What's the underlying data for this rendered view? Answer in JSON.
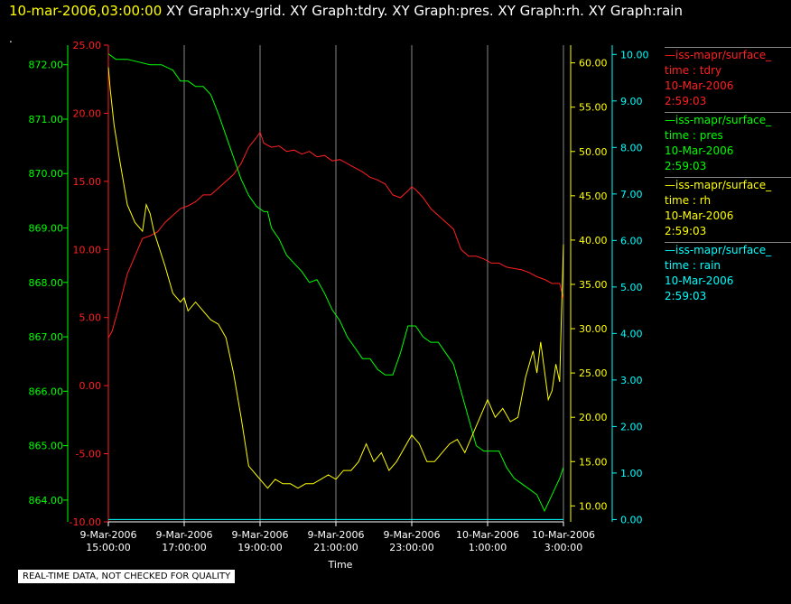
{
  "header": {
    "timestamp": "10-mar-2006,03:00:00",
    "titles": "XY Graph:xy-grid.  XY Graph:tdry.  XY Graph:pres.  XY Graph:rh.  XY Graph:rain",
    "dot": "."
  },
  "footer": "REAL-TIME DATA, NOT CHECKED FOR QUALITY",
  "legend": [
    {
      "source": "—iss-mapr/surface_",
      "line1": "time : tdry",
      "line2": "10-Mar-2006",
      "line3": "2:59:03",
      "color": "#ff2020"
    },
    {
      "source": "—iss-mapr/surface_",
      "line1": "time : pres",
      "line2": "10-Mar-2006",
      "line3": "2:59:03",
      "color": "#00ff00"
    },
    {
      "source": "—iss-mapr/surface_",
      "line1": "time : rh",
      "line2": "10-Mar-2006",
      "line3": "2:59:03",
      "color": "#ffff00"
    },
    {
      "source": "—iss-mapr/surface_",
      "line1": "time : rain",
      "line2": "10-Mar-2006",
      "line3": "2:59:03",
      "color": "#00ffff"
    }
  ],
  "chart_data": {
    "type": "line",
    "xlabel": "Time",
    "x_ticks": [
      {
        "l1": "9-Mar-2006",
        "l2": "15:00:00",
        "h": 0
      },
      {
        "l1": "9-Mar-2006",
        "l2": "17:00:00",
        "h": 2
      },
      {
        "l1": "9-Mar-2006",
        "l2": "19:00:00",
        "h": 4
      },
      {
        "l1": "9-Mar-2006",
        "l2": "21:00:00",
        "h": 6
      },
      {
        "l1": "9-Mar-2006",
        "l2": "23:00:00",
        "h": 8
      },
      {
        "l1": "10-Mar-2006",
        "l2": "1:00:00",
        "h": 10
      },
      {
        "l1": "10-Mar-2006",
        "l2": "3:00:00",
        "h": 12
      }
    ],
    "xlim_hours": [
      0,
      12
    ],
    "grid": true,
    "axes": {
      "pres": {
        "color": "#00ff00",
        "ylim": [
          863.6,
          872.36
        ],
        "ticks": [
          864,
          865,
          866,
          867,
          868,
          869,
          870,
          871,
          872
        ],
        "labels": [
          "864.00",
          "865.00",
          "866.00",
          "867.00",
          "868.00",
          "869.00",
          "870.00",
          "871.00",
          "872.00"
        ]
      },
      "tdry": {
        "color": "#ff2020",
        "ylim": [
          -10,
          25
        ],
        "ticks": [
          -10,
          -5,
          0,
          5,
          10,
          15,
          20,
          25
        ],
        "labels": [
          "-10.00",
          "-5.00",
          "0.00",
          "5.00",
          "10.00",
          "15.00",
          "20.00",
          "25.00"
        ]
      },
      "rh": {
        "color": "#ffff00",
        "ylim": [
          8.2,
          62.0
        ],
        "ticks": [
          10,
          15,
          20,
          25,
          30,
          35,
          40,
          45,
          50,
          55,
          60
        ],
        "labels": [
          "10.00",
          "15.00",
          "20.00",
          "25.00",
          "30.00",
          "35.00",
          "40.00",
          "45.00",
          "50.00",
          "55.00",
          "60.00"
        ]
      },
      "rain": {
        "color": "#00ffff",
        "ylim": [
          -0.05,
          10.2
        ],
        "ticks": [
          0,
          1,
          2,
          3,
          4,
          5,
          6,
          7,
          8,
          9,
          10
        ],
        "labels": [
          "0.00",
          "1.00",
          "2.00",
          "3.00",
          "4.00",
          "5.00",
          "6.00",
          "7.00",
          "8.00",
          "9.00",
          "10.00"
        ]
      }
    },
    "series": [
      {
        "name": "tdry",
        "axis": "tdry",
        "color": "#ff2020",
        "x": [
          0,
          0.1,
          0.3,
          0.5,
          0.7,
          0.9,
          1.1,
          1.3,
          1.5,
          1.7,
          1.9,
          2.1,
          2.3,
          2.5,
          2.7,
          2.9,
          3.1,
          3.3,
          3.5,
          3.7,
          3.9,
          4.0,
          4.1,
          4.3,
          4.5,
          4.7,
          4.9,
          5.1,
          5.3,
          5.5,
          5.7,
          5.9,
          6.1,
          6.3,
          6.5,
          6.7,
          6.9,
          7.1,
          7.3,
          7.5,
          7.7,
          7.9,
          8.0,
          8.1,
          8.3,
          8.5,
          8.7,
          8.9,
          9.1,
          9.3,
          9.5,
          9.7,
          9.9,
          10.1,
          10.3,
          10.5,
          10.7,
          10.9,
          11.1,
          11.3,
          11.5,
          11.7,
          11.9,
          12.0
        ],
        "y": [
          3.5,
          4,
          6,
          8.2,
          9.5,
          10.8,
          11,
          11.3,
          12,
          12.5,
          13,
          13.2,
          13.5,
          14,
          14,
          14.5,
          15,
          15.5,
          16.3,
          17.5,
          18.2,
          18.6,
          17.8,
          17.5,
          17.6,
          17.2,
          17.3,
          17.0,
          17.2,
          16.8,
          16.9,
          16.5,
          16.6,
          16.3,
          16.0,
          15.7,
          15.3,
          15.1,
          14.8,
          14.0,
          13.8,
          14.3,
          14.6,
          14.4,
          13.8,
          13.0,
          12.5,
          12.0,
          11.5,
          10.0,
          9.5,
          9.5,
          9.3,
          9.0,
          9.0,
          8.7,
          8.6,
          8.5,
          8.3,
          8.0,
          7.8,
          7.5,
          7.5,
          6.4
        ]
      },
      {
        "name": "pres",
        "axis": "pres",
        "color": "#00ff00",
        "x": [
          0,
          0.2,
          0.5,
          0.8,
          1.1,
          1.4,
          1.7,
          1.9,
          2.1,
          2.3,
          2.5,
          2.7,
          2.9,
          3.1,
          3.3,
          3.5,
          3.7,
          3.9,
          4.1,
          4.2,
          4.3,
          4.5,
          4.7,
          4.9,
          5.1,
          5.3,
          5.5,
          5.7,
          5.9,
          6.1,
          6.3,
          6.5,
          6.7,
          6.9,
          7.1,
          7.3,
          7.5,
          7.7,
          7.9,
          8.1,
          8.3,
          8.5,
          8.7,
          8.9,
          9.1,
          9.3,
          9.5,
          9.7,
          9.9,
          10.1,
          10.3,
          10.5,
          10.7,
          10.9,
          11.1,
          11.3,
          11.5,
          11.7,
          11.9,
          12.0
        ],
        "y": [
          872.2,
          872.1,
          872.1,
          872.05,
          872.0,
          872.0,
          871.9,
          871.7,
          871.7,
          871.6,
          871.6,
          871.45,
          871.1,
          870.7,
          870.3,
          869.9,
          869.6,
          869.4,
          869.3,
          869.3,
          869.0,
          868.8,
          868.5,
          868.35,
          868.2,
          868.0,
          868.05,
          867.8,
          867.5,
          867.3,
          867.0,
          866.8,
          866.6,
          866.6,
          866.4,
          866.3,
          866.3,
          866.7,
          867.2,
          867.2,
          867.0,
          866.9,
          866.9,
          866.7,
          866.5,
          866.0,
          865.5,
          865.0,
          864.9,
          864.9,
          864.9,
          864.6,
          864.4,
          864.3,
          864.2,
          864.1,
          863.8,
          864.1,
          864.4,
          864.6
        ]
      },
      {
        "name": "rh",
        "axis": "rh",
        "color": "#ffff00",
        "x": [
          0,
          0.05,
          0.15,
          0.3,
          0.5,
          0.7,
          0.9,
          1.0,
          1.1,
          1.2,
          1.35,
          1.5,
          1.7,
          1.9,
          2.0,
          2.1,
          2.3,
          2.5,
          2.7,
          2.9,
          3.1,
          3.3,
          3.5,
          3.7,
          3.8,
          3.9,
          4.0,
          4.1,
          4.2,
          4.3,
          4.4,
          4.6,
          4.8,
          5.0,
          5.2,
          5.4,
          5.6,
          5.8,
          6.0,
          6.2,
          6.4,
          6.6,
          6.8,
          7.0,
          7.2,
          7.4,
          7.6,
          7.8,
          8.0,
          8.2,
          8.4,
          8.6,
          8.8,
          9.0,
          9.2,
          9.4,
          9.6,
          9.8,
          10.0,
          10.1,
          10.2,
          10.4,
          10.6,
          10.8,
          11.0,
          11.1,
          11.2,
          11.3,
          11.4,
          11.6,
          11.7,
          11.8,
          11.9,
          11.95,
          12.0
        ],
        "y": [
          59.5,
          57,
          53,
          49,
          44,
          42,
          41,
          44,
          43,
          41,
          39,
          37,
          34,
          33,
          33.5,
          32,
          33,
          32,
          31,
          30.5,
          29,
          25,
          20,
          14.5,
          14,
          13.5,
          13,
          12.5,
          12,
          12.5,
          13,
          12.5,
          12.5,
          12,
          12.5,
          12.5,
          13,
          13.5,
          13,
          14,
          14,
          15,
          17,
          15,
          16,
          14,
          15,
          16.5,
          18,
          17,
          15,
          15,
          16,
          17,
          17.5,
          16,
          18,
          20,
          22,
          21,
          20,
          21,
          19.5,
          20,
          24.5,
          26,
          27.5,
          25,
          28.5,
          22,
          23,
          26,
          24,
          32,
          39.5
        ]
      },
      {
        "name": "rain",
        "axis": "rain",
        "color": "#00ffff",
        "x": [
          0,
          12
        ],
        "y": [
          0,
          0
        ]
      }
    ]
  }
}
